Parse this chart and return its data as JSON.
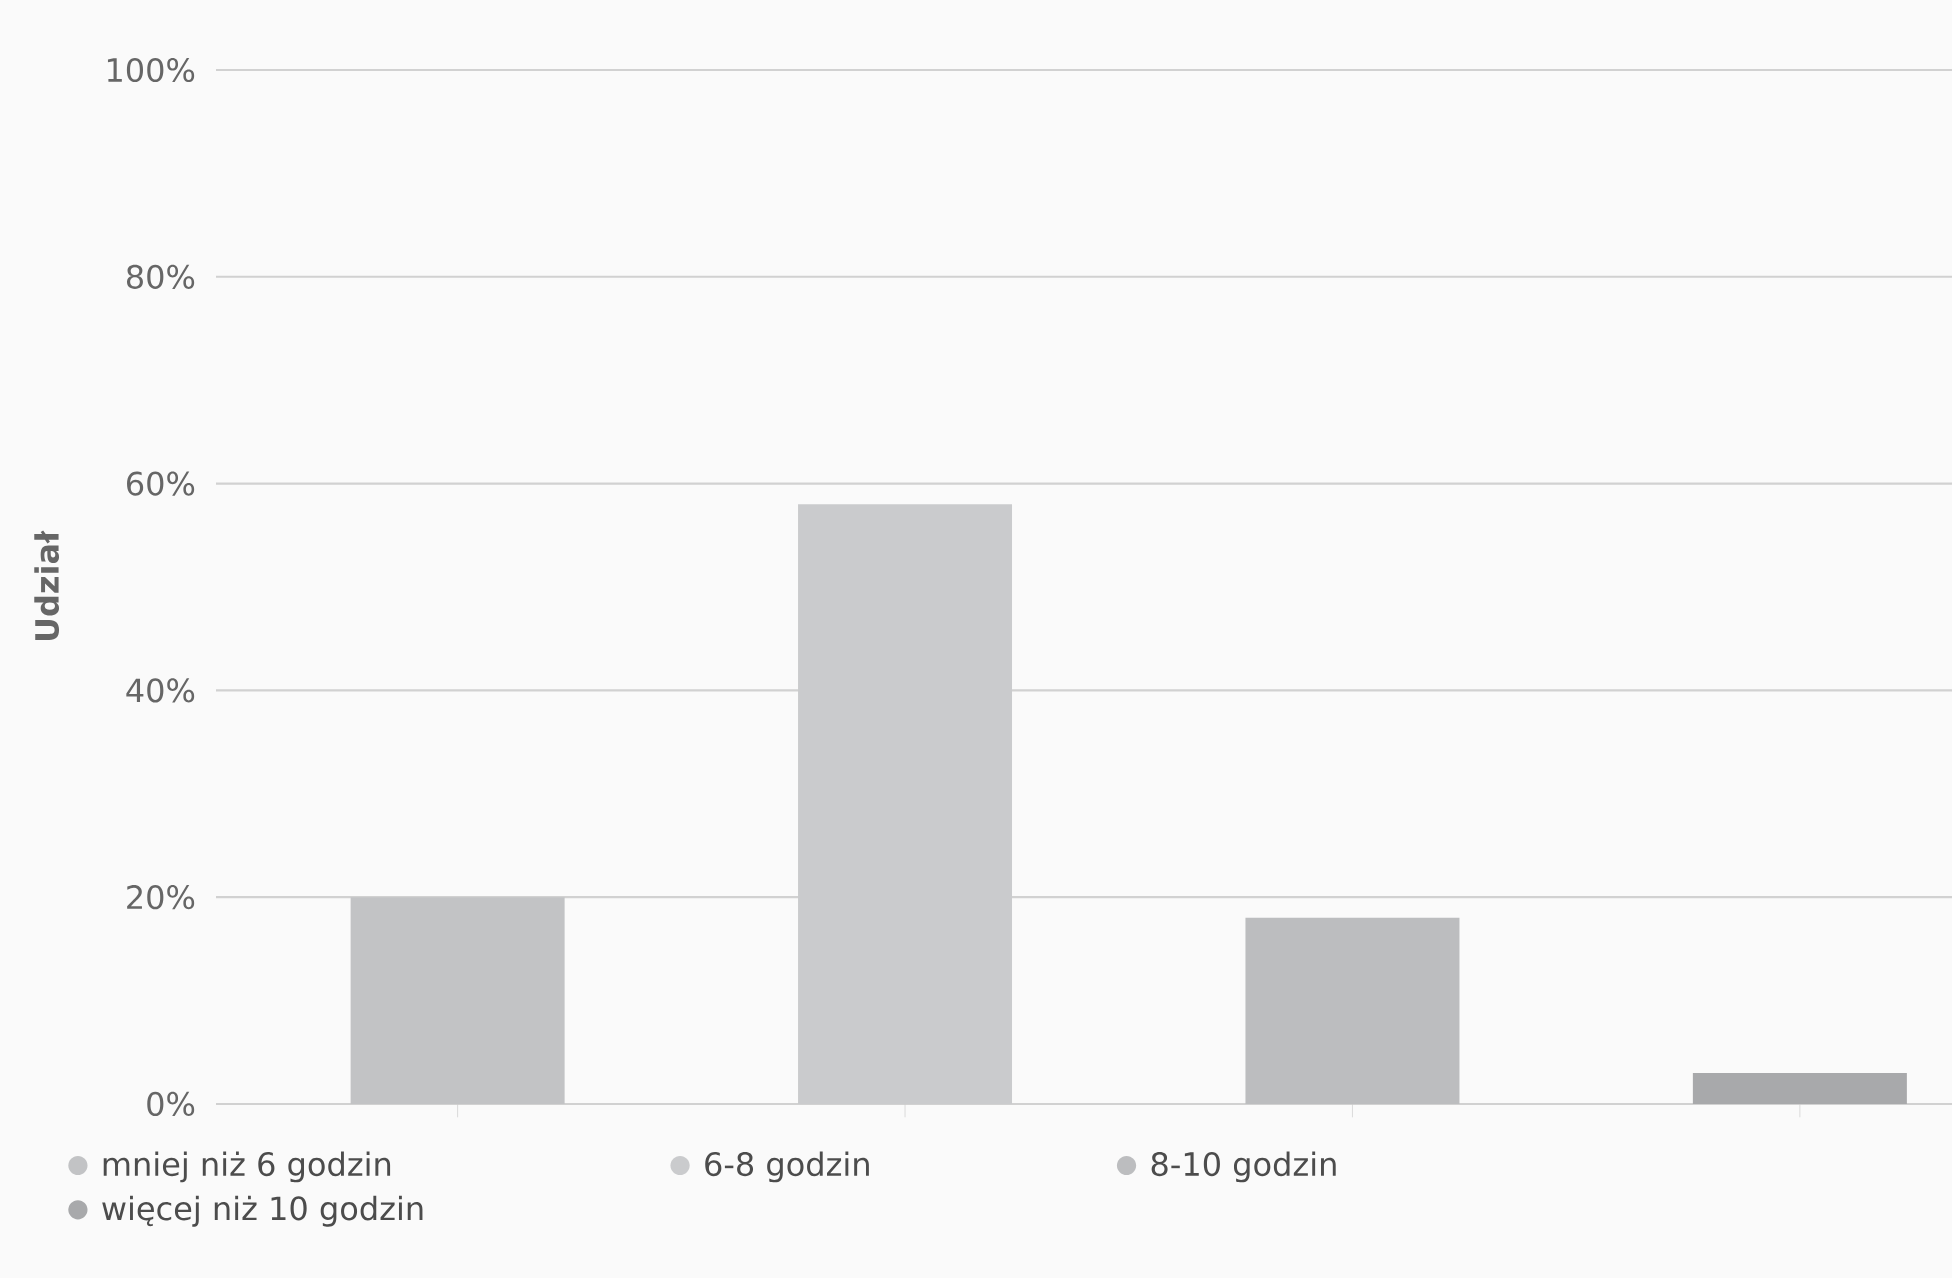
{
  "chart_data": {
    "type": "bar",
    "ylabel": "Udział",
    "categories": [
      null,
      null,
      null,
      null
    ],
    "series": [
      {
        "name": "mniej niż 6 godzin",
        "color": "#c2c3c5",
        "values": [
          20,
          null,
          null,
          null
        ]
      },
      {
        "name": "6-8 godzin",
        "color": "#cacbcd",
        "values": [
          null,
          58,
          null,
          null
        ]
      },
      {
        "name": "8-10 godzin",
        "color": "#bcbdbf",
        "values": [
          null,
          null,
          18,
          null
        ]
      },
      {
        "name": "więcej niż 10 godzin",
        "color": "#a8a9ab",
        "values": [
          null,
          null,
          null,
          3
        ]
      }
    ],
    "ylim": [
      0,
      100
    ],
    "yticks": [
      {
        "value": 0,
        "label": "0%"
      },
      {
        "value": 20,
        "label": "20%"
      },
      {
        "value": 40,
        "label": "40%"
      },
      {
        "value": 60,
        "label": "60%"
      },
      {
        "value": 80,
        "label": "80%"
      },
      {
        "value": 100,
        "label": "100%"
      }
    ],
    "grid": "y",
    "legend": "bottom",
    "marker": "circle",
    "tick_labels": "y"
  }
}
